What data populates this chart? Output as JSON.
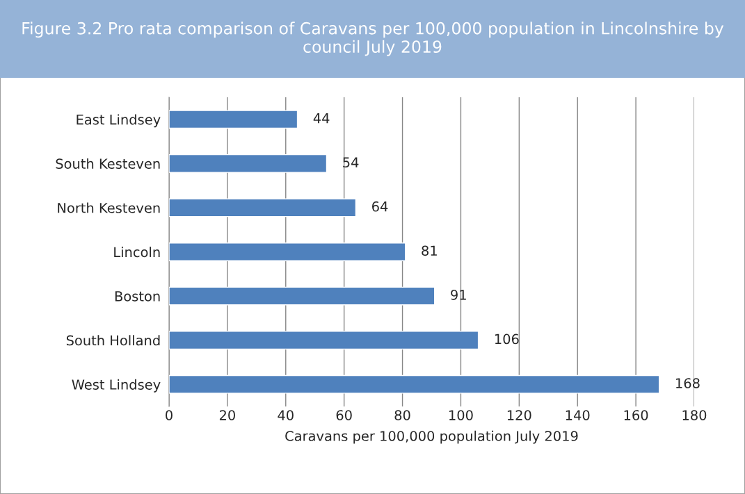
{
  "chart_data": {
    "type": "bar",
    "orientation": "horizontal",
    "title": "Figure 3.2 Pro rata comparison of Caravans per 100,000 population in Lincolnshire by council July 2019",
    "xlabel": "Caravans per 100,000 population July 2019",
    "categories": [
      "East Lindsey",
      "South Kesteven",
      "North Kesteven",
      "Lincoln",
      "Boston",
      "South Holland",
      "West Lindsey"
    ],
    "values": [
      44,
      54,
      64,
      81,
      91,
      106,
      168
    ],
    "color": "#4f81bd",
    "xlim": [
      0,
      180
    ],
    "xticks": [
      0,
      20,
      40,
      60,
      80,
      100,
      120,
      140,
      160,
      180
    ],
    "grid": "x",
    "data_labels": true,
    "legend": false
  }
}
